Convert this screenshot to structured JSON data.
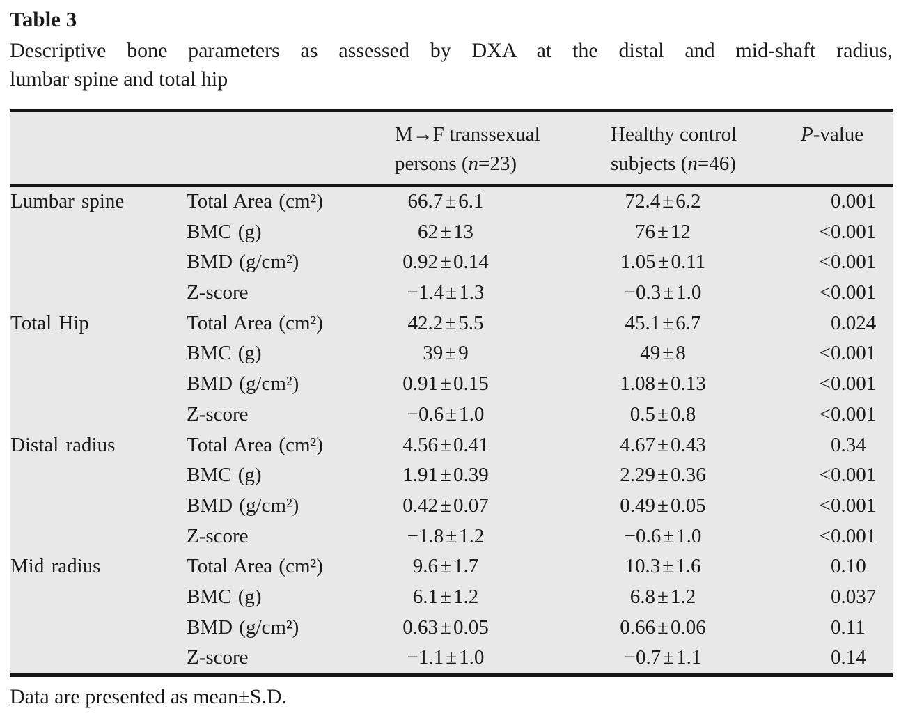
{
  "title": "Table 3",
  "caption_line1": "Descriptive bone parameters as assessed by DXA at the distal and mid-shaft radius,",
  "caption_line2": "lumbar spine and total hip",
  "footnote": "Data are presented as mean±S.D.",
  "colors": {
    "table_bg": "#e8e8e9",
    "rule": "#161616",
    "ink": "#1b1b1b"
  },
  "header": {
    "columns": [
      {
        "id": "transsexual",
        "lines": [
          "M→F transsexual",
          "persons (n=23)"
        ]
      },
      {
        "id": "control",
        "lines": [
          "Healthy control",
          "subjects (n=46)"
        ]
      },
      {
        "id": "pvalue",
        "lines": [
          "P-value"
        ]
      }
    ]
  },
  "sections": [
    {
      "site": "Lumbar spine",
      "rows": [
        {
          "param": "Total Area (cm²)",
          "transsexual": "66.7±6.1",
          "control": "72.4±6.2",
          "p": "0.001"
        },
        {
          "param": "BMC (g)",
          "transsexual": "62±13",
          "control": "76±12",
          "p": "<0.001"
        },
        {
          "param": "BMD (g/cm²)",
          "transsexual": "0.92±0.14",
          "control": "1.05±0.11",
          "p": "<0.001"
        },
        {
          "param": "Z-score",
          "transsexual": "−1.4±1.3",
          "control": "−0.3±1.0",
          "p": "<0.001"
        }
      ]
    },
    {
      "site": "Total Hip",
      "rows": [
        {
          "param": "Total Area (cm²)",
          "transsexual": "42.2±5.5",
          "control": "45.1±6.7",
          "p": "0.024"
        },
        {
          "param": "BMC (g)",
          "transsexual": "39±9",
          "control": "49±8",
          "p": "<0.001"
        },
        {
          "param": "BMD (g/cm²)",
          "transsexual": "0.91±0.15",
          "control": "1.08±0.13",
          "p": "<0.001"
        },
        {
          "param": "Z-score",
          "transsexual": "−0.6±1.0",
          "control": "0.5±0.8",
          "p": "<0.001"
        }
      ]
    },
    {
      "site": "Distal radius",
      "rows": [
        {
          "param": "Total Area (cm²)",
          "transsexual": "4.56±0.41",
          "control": "4.67±0.43",
          "p": "0.34"
        },
        {
          "param": "BMC (g)",
          "transsexual": "1.91±0.39",
          "control": "2.29±0.36",
          "p": "<0.001"
        },
        {
          "param": "BMD (g/cm²)",
          "transsexual": "0.42±0.07",
          "control": "0.49±0.05",
          "p": "<0.001"
        },
        {
          "param": "Z-score",
          "transsexual": "−1.8±1.2",
          "control": "−0.6±1.0",
          "p": "<0.001"
        }
      ]
    },
    {
      "site": "Mid radius",
      "rows": [
        {
          "param": "Total Area (cm²)",
          "transsexual": "9.6±1.7",
          "control": "10.3±1.6",
          "p": "0.10"
        },
        {
          "param": "BMC (g)",
          "transsexual": "6.1±1.2",
          "control": "6.8±1.2",
          "p": "0.037"
        },
        {
          "param": "BMD (g/cm²)",
          "transsexual": "0.63±0.05",
          "control": "0.66±0.06",
          "p": "0.11"
        },
        {
          "param": "Z-score",
          "transsexual": "−1.1±1.0",
          "control": "−0.7±1.1",
          "p": "0.14"
        }
      ]
    }
  ]
}
